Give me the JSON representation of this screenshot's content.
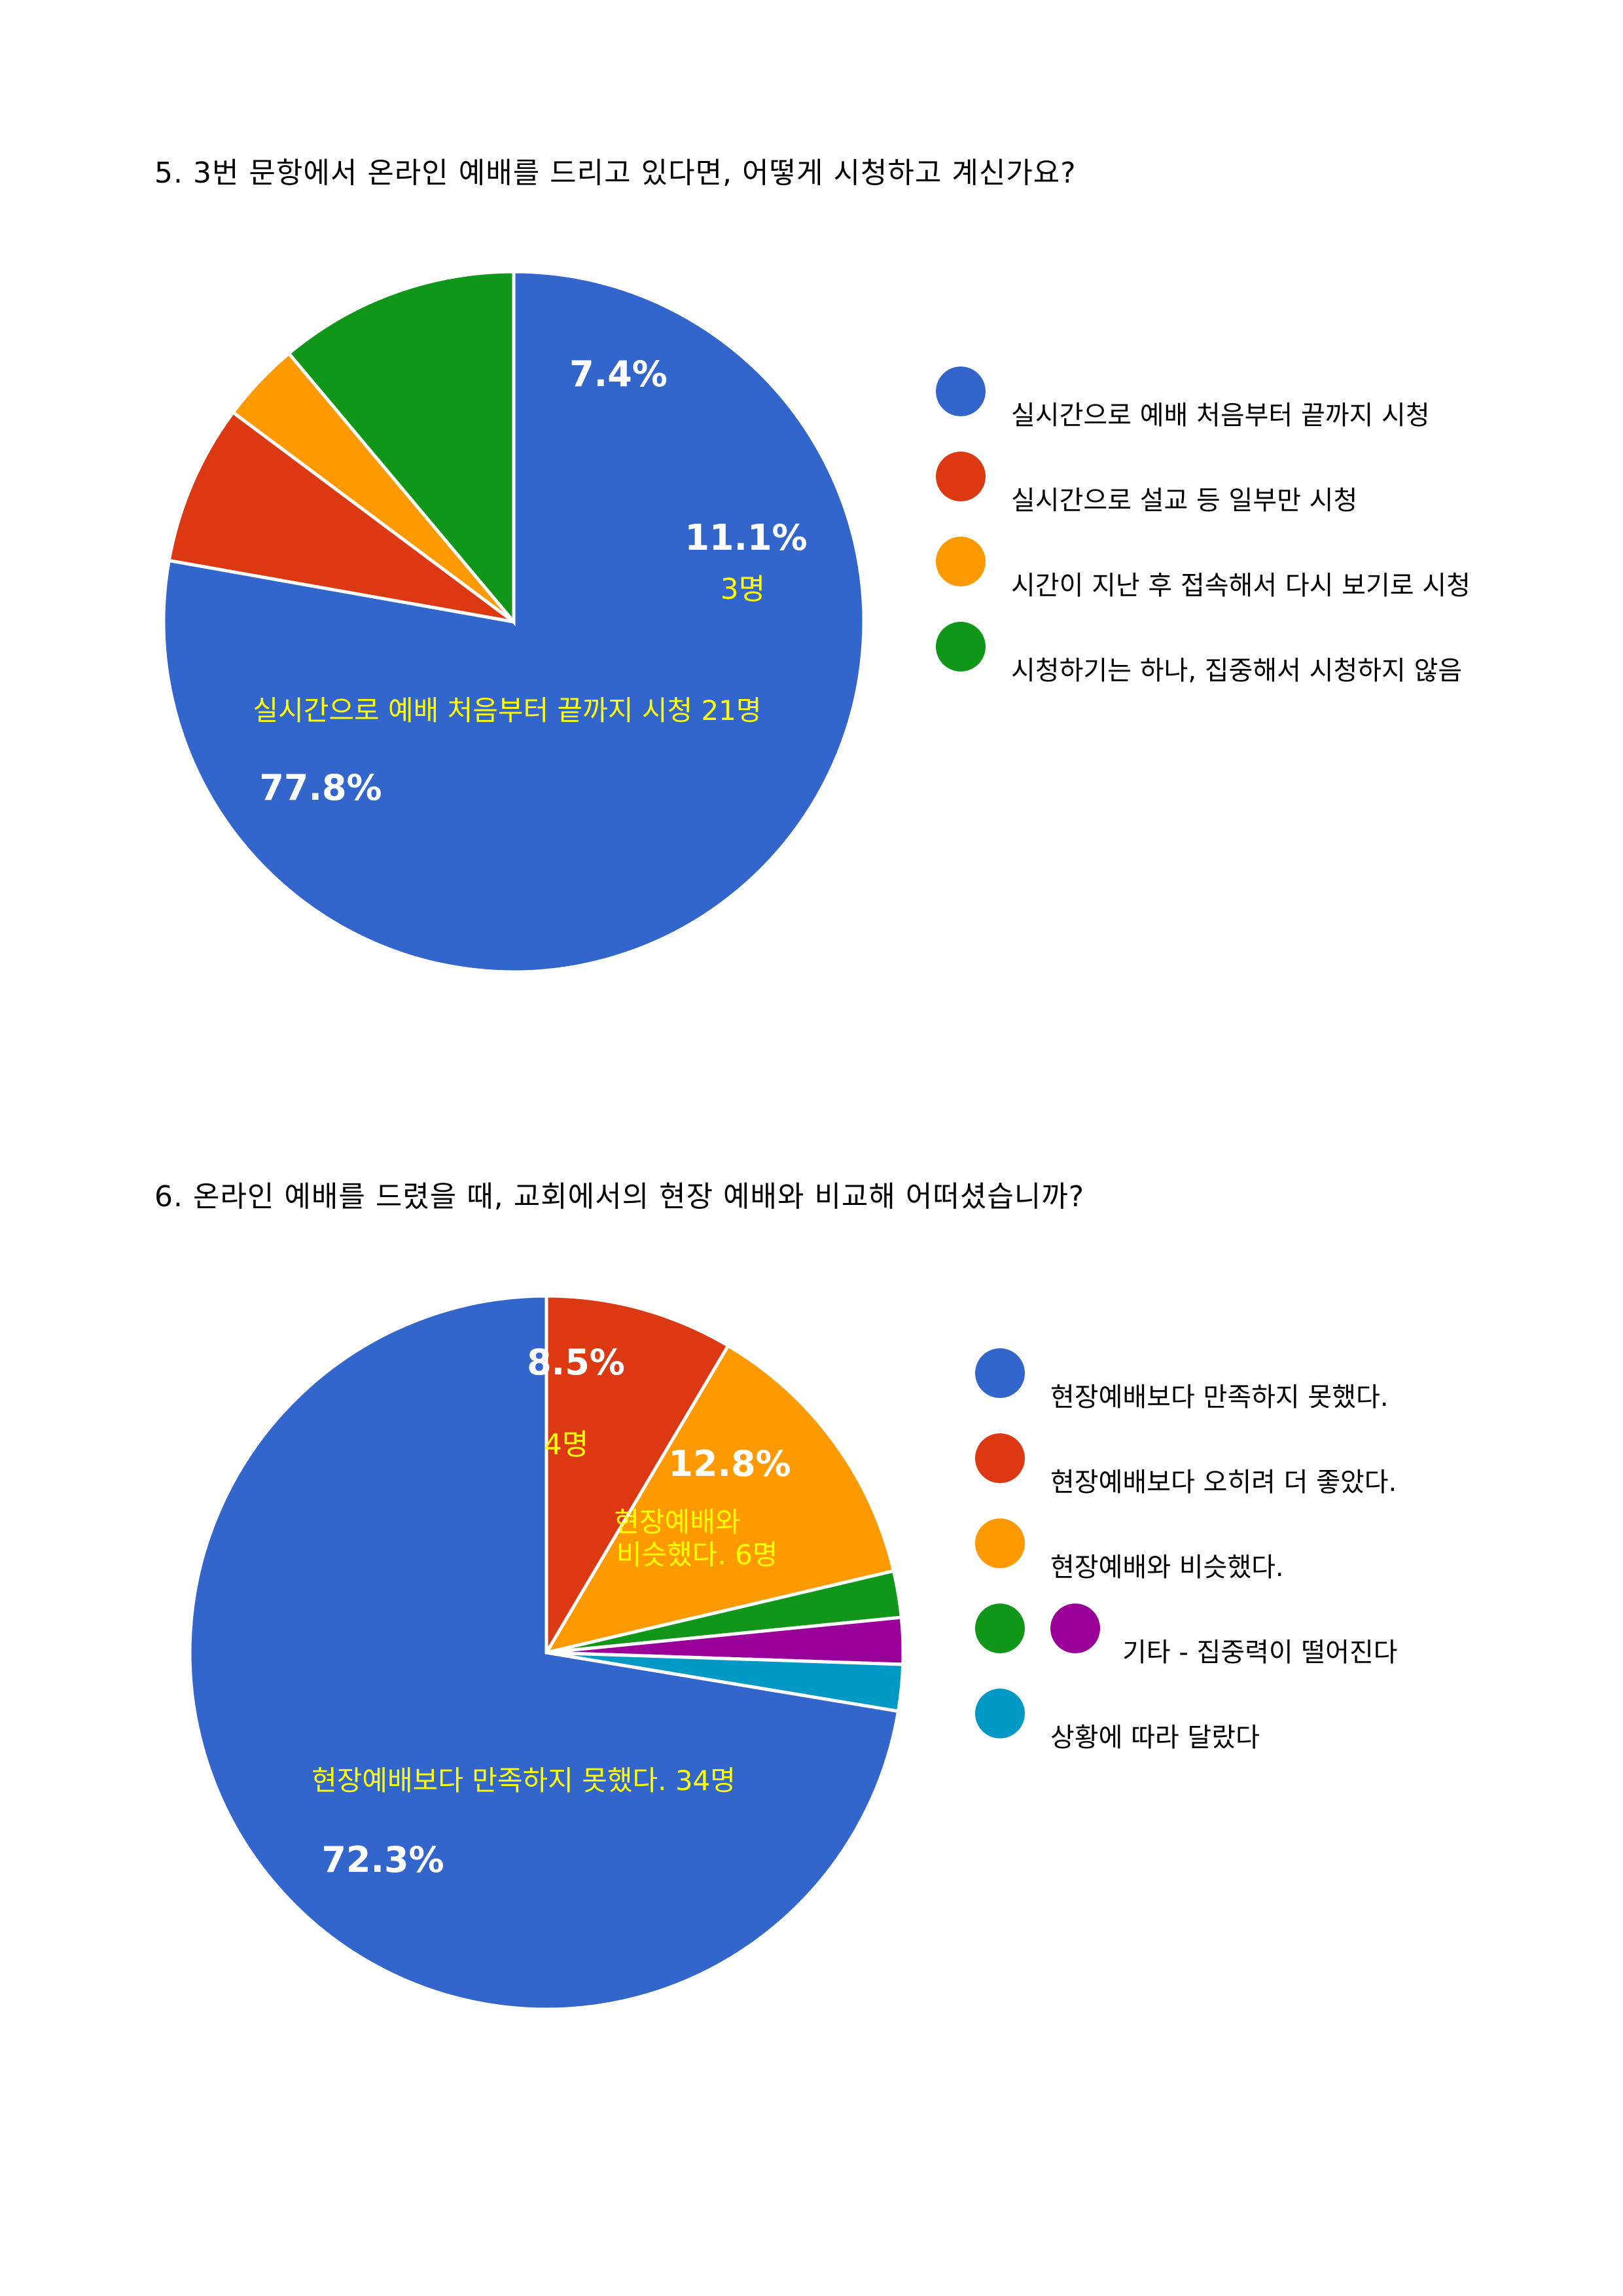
{
  "colors": {
    "blue": "#3366cc",
    "red": "#dc3912",
    "orange": "#ff9900",
    "green": "#109618",
    "purple": "#990099",
    "cyan": "#0099c6",
    "yellow_text": "#ffff00",
    "white_text": "#ffffff"
  },
  "questions": [
    {
      "title": "5. 3번 문항에서 온라인 예배를 드리고 있다면, 어떻게 시청하고 계신가요?",
      "legend": [
        {
          "label": "실시간으로 예배 처음부터 끝까지 시청",
          "color": "#3366cc"
        },
        {
          "label": "실시간으로 설교 등 일부만 시청",
          "color": "#dc3912"
        },
        {
          "label": "시간이 지난 후 접속해서 다시 보기로 시청",
          "color": "#ff9900"
        },
        {
          "label": "시청하기는 하나, 집중해서 시청하지 않음",
          "color": "#109618"
        }
      ],
      "annotations": {
        "main_percent": "77.8%",
        "main_caption": "실시간으로 예배 처음부터 끝까지 시청 21명",
        "red_percent": "7.4%",
        "green_percent": "11.1%",
        "green_count": "3명"
      }
    },
    {
      "title": "6. 온라인 예배를 드렸을 때, 교회에서의 현장 예배와 비교해 어떠셨습니까?",
      "legend": [
        {
          "label": "현장예배보다 만족하지 못했다.",
          "color": "#3366cc"
        },
        {
          "label": "현장예배보다 오히려 더 좋았다.",
          "color": "#dc3912"
        },
        {
          "label": "현장예배와 비슷했다.",
          "color": "#ff9900"
        },
        {
          "label": "기타 - 집중력이 떨어진다",
          "color": "#109618",
          "color2": "#990099"
        },
        {
          "label": "상황에 따라 달랐다",
          "color": "#0099c6"
        }
      ],
      "annotations": {
        "main_percent": "72.3%",
        "main_caption": "현장예배보다 만족하지 못했다. 34명",
        "red_percent": "8.5%",
        "red_count": "4명",
        "orange_percent": "12.8%",
        "orange_caption_line1": "현장예배와",
        "orange_caption_line2": "비슷했다. 6명"
      }
    }
  ],
  "chart_data": [
    {
      "type": "pie",
      "title": "5. 3번 문항에서 온라인 예배를 드리고 있다면, 어떻게 시청하고 계신가요?",
      "start": "12 o'clock, clockwise",
      "legend_position": "right",
      "slices": [
        {
          "label": "실시간으로 예배 처음부터 끝까지 시청",
          "value": 77.8,
          "count": 21,
          "color": "#3366cc"
        },
        {
          "label": "실시간으로 설교 등 일부만 시청",
          "value": 7.4,
          "count": 2,
          "color": "#dc3912"
        },
        {
          "label": "시간이 지난 후 접속해서 다시 보기로 시청",
          "value": 3.7,
          "count": 1,
          "color": "#ff9900"
        },
        {
          "label": "시청하기는 하나, 집중해서 시청하지 않음",
          "value": 11.1,
          "count": 3,
          "color": "#109618"
        }
      ],
      "display_order": [
        0,
        1,
        2,
        3
      ]
    },
    {
      "type": "pie",
      "title": "6. 온라인 예배를 드렸을 때, 교회에서의 현장 예배와 비교해 어떠셨습니까?",
      "start": "12 o'clock, clockwise",
      "legend_position": "right",
      "slices": [
        {
          "label": "현장예배보다 만족하지 못했다.",
          "value": 72.3,
          "count": 34,
          "color": "#3366cc"
        },
        {
          "label": "현장예배보다 오히려 더 좋았다.",
          "value": 8.5,
          "count": 4,
          "color": "#dc3912"
        },
        {
          "label": "현장예배와 비슷했다.",
          "value": 12.8,
          "count": 6,
          "color": "#ff9900"
        },
        {
          "label": "기타 - 집중력이 떨어진다",
          "value": 2.1,
          "count": 1,
          "color": "#109618"
        },
        {
          "label": "기타 - 집중력이 떨어진다",
          "value": 2.1,
          "count": 1,
          "color": "#990099"
        },
        {
          "label": "상황에 따라 달랐다",
          "value": 2.1,
          "count": 1,
          "color": "#0099c6"
        }
      ],
      "display_order": [
        1,
        2,
        3,
        4,
        5,
        0
      ]
    }
  ]
}
